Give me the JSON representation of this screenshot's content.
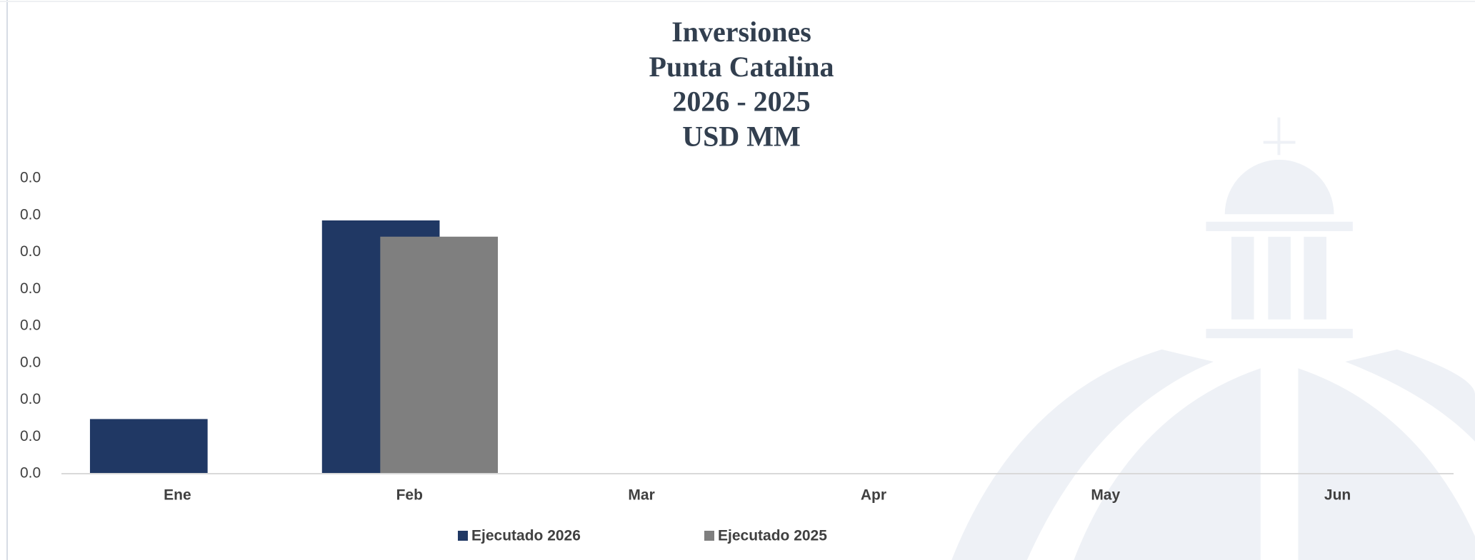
{
  "chart_data": {
    "type": "bar",
    "title": [
      "Inversiones",
      "Punta Catalina",
      "2026 - 2025",
      "USD MM"
    ],
    "categories": [
      "Ene",
      "Feb",
      "Mar",
      "Apr",
      "May",
      "Jun"
    ],
    "series": [
      {
        "name": "Ejecutado 2026",
        "color": "#203864",
        "values": [
          0.0074,
          0.0343,
          null,
          null,
          null,
          null
        ]
      },
      {
        "name": "Ejecutado 2025",
        "color": "#7f7f7f",
        "values": [
          null,
          0.0321,
          null,
          null,
          null,
          null
        ]
      }
    ],
    "ylim": [
      0,
      0.04
    ],
    "yticks": [
      {
        "value": 0,
        "label": "0.0"
      },
      {
        "value": 0.005,
        "label": "0.0"
      },
      {
        "value": 0.01,
        "label": "0.0"
      },
      {
        "value": 0.015,
        "label": "0.0"
      },
      {
        "value": 0.02,
        "label": "0.0"
      },
      {
        "value": 0.025,
        "label": "0.0"
      },
      {
        "value": 0.03,
        "label": "0.0"
      },
      {
        "value": 0.035,
        "label": "0.0"
      },
      {
        "value": 0.04,
        "label": "0.0"
      }
    ],
    "grid": false
  }
}
